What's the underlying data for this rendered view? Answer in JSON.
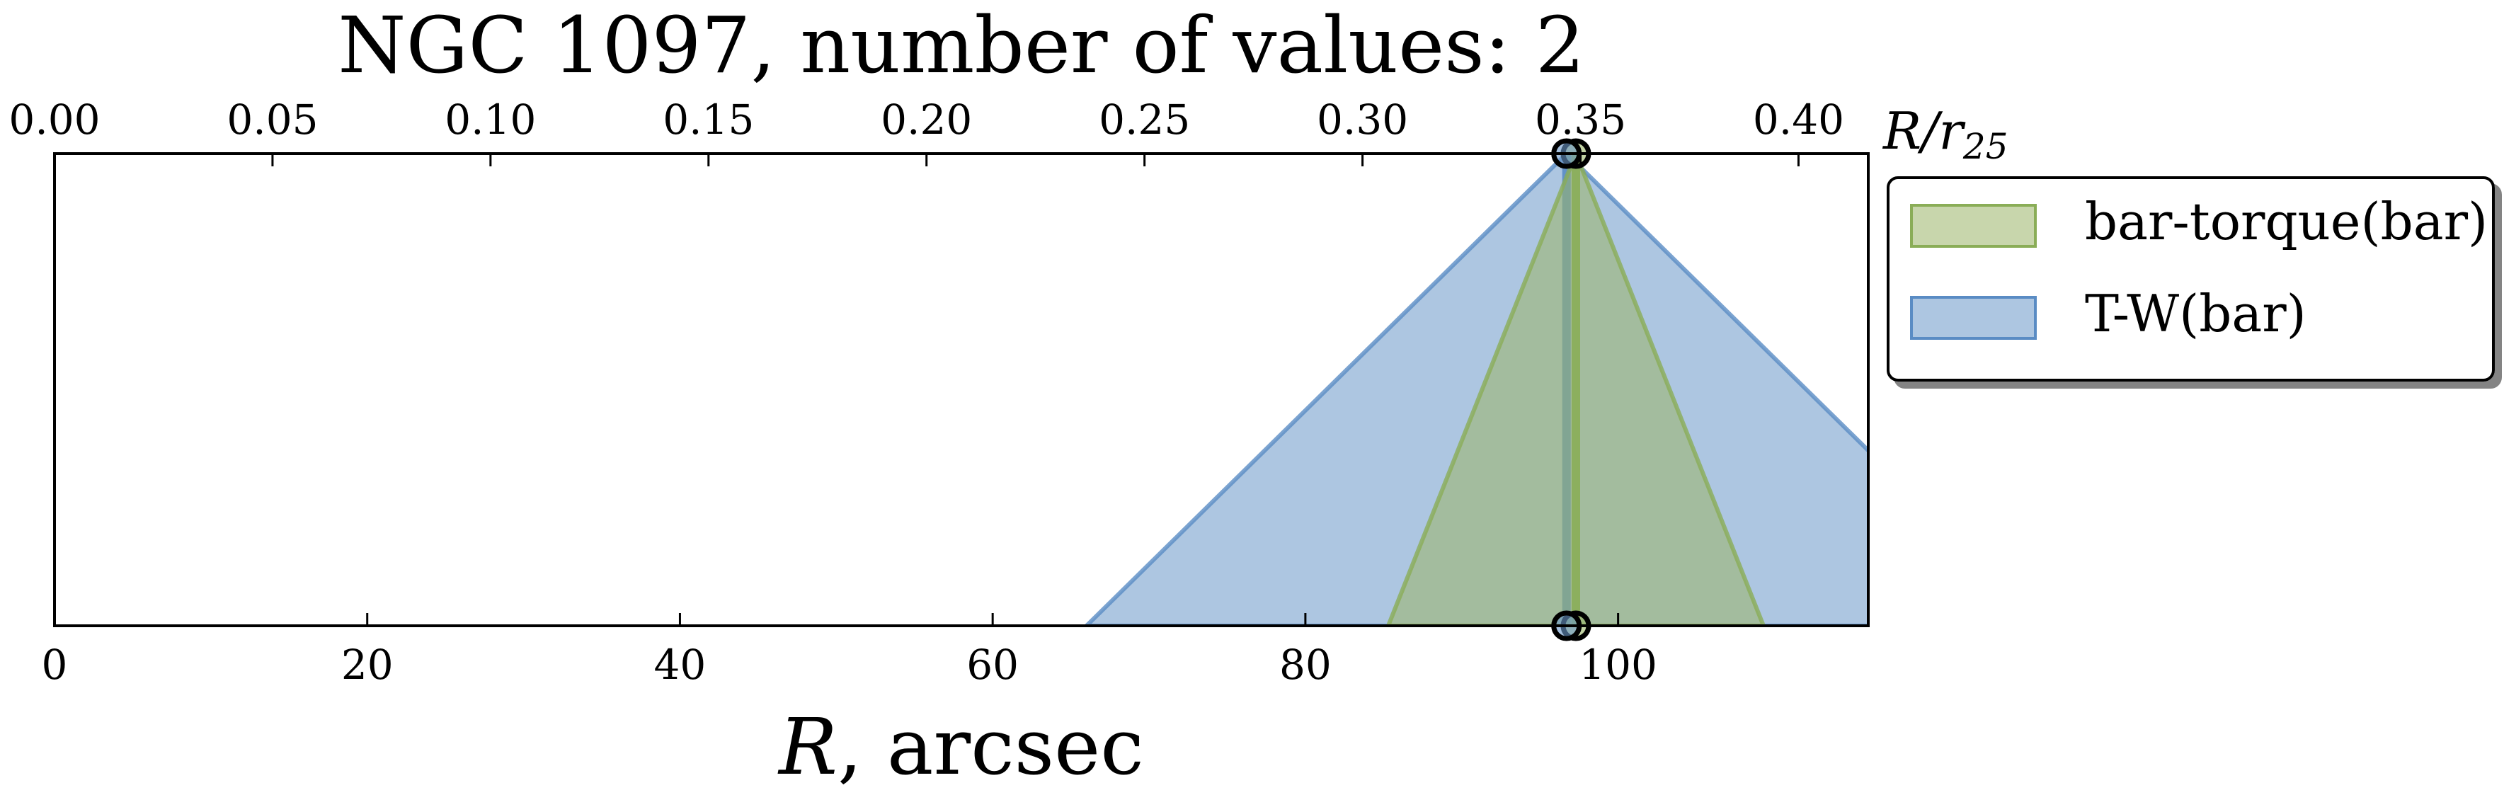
{
  "chart_data": {
    "type": "area",
    "title": "NGC 1097, number of values: 2",
    "xlabel": "R, arcsec",
    "xlabel_parts": {
      "var": "R",
      "rest": ", arcsec"
    },
    "x2label": "R/r25",
    "x2label_parts": {
      "var": "R/r",
      "sub": "25"
    },
    "xlim": [
      0,
      116
    ],
    "x2lim": [
      0,
      0.416
    ],
    "ylim": [
      0,
      1
    ],
    "xticks": [
      "0",
      "20",
      "40",
      "60",
      "80",
      "100"
    ],
    "xtick_values": [
      0,
      20,
      40,
      60,
      80,
      100
    ],
    "x2ticks": [
      "0.00",
      "0.05",
      "0.10",
      "0.15",
      "0.20",
      "0.25",
      "0.30",
      "0.35",
      "0.40"
    ],
    "x2tick_values": [
      0.0,
      0.05,
      0.1,
      0.15,
      0.2,
      0.25,
      0.3,
      0.35,
      0.4
    ],
    "grid": false,
    "legend_position": "outside-right",
    "series": [
      {
        "name": "bar-torque(bar)",
        "value": 97.3,
        "lower": 85.3,
        "upper": 109.3,
        "fill_color": "#9ab567",
        "edge_color": "#8aad57"
      },
      {
        "name": "T-W(bar)",
        "value": 96.7,
        "lower": 66.0,
        "upper": 127.4,
        "fill_color": "#6a97c9",
        "edge_color": "#5a8cc4"
      }
    ]
  }
}
